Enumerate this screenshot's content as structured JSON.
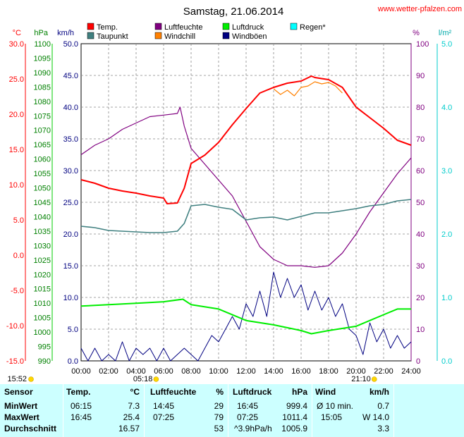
{
  "header": {
    "title": "Samstag, 21.06.2014",
    "website": "www.wetter-pfalzen.com"
  },
  "legend": [
    {
      "label": "Temp.",
      "color": "#ff0000"
    },
    {
      "label": "Luftfeuchte",
      "color": "#800080"
    },
    {
      "label": "Luftdruck",
      "color": "#00ee00"
    },
    {
      "label": "Regen*",
      "color": "#00ffff"
    },
    {
      "label": "Taupunkt",
      "color": "#408080"
    },
    {
      "label": "Windchill",
      "color": "#ff8000"
    },
    {
      "label": "Windböen",
      "color": "#000080"
    }
  ],
  "axis_units": {
    "temp": "°C",
    "pressure": "hPa",
    "wind": "km/h",
    "humidity": "%",
    "rain": "l/m²"
  },
  "sun": {
    "sunrise_left": "15:52",
    "sunrise": "05:18",
    "sunset": "21:10"
  },
  "chart_data": {
    "type": "line",
    "x_label": "",
    "x_ticks": [
      "00:00",
      "02:00",
      "04:00",
      "06:00",
      "08:00",
      "10:00",
      "12:00",
      "14:00",
      "16:00",
      "18:00",
      "20:00",
      "22:00",
      "24:00"
    ],
    "axes": {
      "temp_c": {
        "ticks": [
          "30.0",
          "25.0",
          "20.0",
          "15.0",
          "10.0",
          "5.0",
          "0.0",
          "-5.0",
          "-10.0",
          "-15.0"
        ],
        "range": [
          -15,
          30
        ]
      },
      "pressure_hpa": {
        "ticks": [
          "1100",
          "1095",
          "1090",
          "1085",
          "1080",
          "1075",
          "1070",
          "1065",
          "1060",
          "1055",
          "1050",
          "1045",
          "1040",
          "1035",
          "1030",
          "1025",
          "1020",
          "1015",
          "1010",
          "1005",
          "1000",
          "995",
          "990"
        ],
        "range": [
          990,
          1100
        ]
      },
      "wind_kmh": {
        "ticks": [
          "50.0",
          "45.0",
          "40.0",
          "35.0",
          "30.0",
          "25.0",
          "20.0",
          "15.0",
          "10.0",
          "5.0",
          "0.0"
        ],
        "range": [
          0,
          50
        ]
      },
      "humidity_pct": {
        "ticks": [
          "100",
          "90",
          "80",
          "70",
          "60",
          "50",
          "40",
          "30",
          "20",
          "10",
          "0"
        ],
        "range": [
          0,
          100
        ]
      },
      "rain_lm2": {
        "ticks": [
          "5.0",
          "4.0",
          "3.0",
          "2.0",
          "1.0",
          "0.0"
        ],
        "range": [
          0,
          5
        ]
      }
    },
    "series": [
      {
        "name": "Temp.",
        "axis": "temp_c",
        "color": "#ff0000",
        "points": [
          [
            0,
            10.7
          ],
          [
            1,
            10.2
          ],
          [
            2,
            9.5
          ],
          [
            3,
            9.1
          ],
          [
            4,
            8.8
          ],
          [
            5,
            8.4
          ],
          [
            6,
            8.1
          ],
          [
            6.25,
            7.3
          ],
          [
            7,
            7.4
          ],
          [
            7.5,
            9.5
          ],
          [
            8,
            13.0
          ],
          [
            9,
            14.2
          ],
          [
            10,
            16.0
          ],
          [
            11,
            18.5
          ],
          [
            12,
            20.8
          ],
          [
            13,
            23.0
          ],
          [
            14,
            23.8
          ],
          [
            15,
            24.4
          ],
          [
            16,
            24.7
          ],
          [
            16.75,
            25.4
          ],
          [
            17,
            25.2
          ],
          [
            18,
            24.9
          ],
          [
            19,
            23.8
          ],
          [
            20,
            21.0
          ],
          [
            21,
            19.5
          ],
          [
            22,
            18.0
          ],
          [
            23,
            16.3
          ],
          [
            24,
            15.6
          ]
        ]
      },
      {
        "name": "Taupunkt",
        "axis": "temp_c",
        "color": "#408080",
        "points": [
          [
            0,
            4.1
          ],
          [
            1,
            3.9
          ],
          [
            2,
            3.5
          ],
          [
            3,
            3.4
          ],
          [
            4,
            3.3
          ],
          [
            5,
            3.2
          ],
          [
            6,
            3.2
          ],
          [
            7,
            3.4
          ],
          [
            7.5,
            4.5
          ],
          [
            8,
            7.0
          ],
          [
            9,
            7.2
          ],
          [
            10,
            6.8
          ],
          [
            11,
            6.5
          ],
          [
            12,
            5.0
          ],
          [
            13,
            5.3
          ],
          [
            14,
            5.4
          ],
          [
            15,
            5.0
          ],
          [
            16,
            5.5
          ],
          [
            17,
            6.0
          ],
          [
            18,
            6.0
          ],
          [
            19,
            6.3
          ],
          [
            20,
            6.6
          ],
          [
            21,
            7.0
          ],
          [
            22,
            7.2
          ],
          [
            23,
            7.7
          ],
          [
            24,
            7.9
          ]
        ]
      },
      {
        "name": "Windchill",
        "axis": "temp_c",
        "color": "#ff8000",
        "points": [
          [
            14,
            23.6
          ],
          [
            14.5,
            22.8
          ],
          [
            15,
            23.4
          ],
          [
            15.5,
            22.6
          ],
          [
            16,
            23.8
          ],
          [
            16.5,
            24.0
          ],
          [
            17,
            24.6
          ],
          [
            17.5,
            24.3
          ],
          [
            18,
            24.5
          ],
          [
            18.5,
            24.0
          ],
          [
            19,
            23.0
          ]
        ]
      },
      {
        "name": "Luftfeuchte",
        "axis": "humidity_pct",
        "color": "#800080",
        "points": [
          [
            0,
            65
          ],
          [
            1,
            68
          ],
          [
            2,
            70
          ],
          [
            3,
            73
          ],
          [
            4,
            75
          ],
          [
            5,
            77
          ],
          [
            6,
            77.5
          ],
          [
            7,
            78
          ],
          [
            7.2,
            80
          ],
          [
            7.5,
            74
          ],
          [
            8,
            67
          ],
          [
            9,
            62
          ],
          [
            10,
            57
          ],
          [
            11,
            52
          ],
          [
            12,
            44
          ],
          [
            13,
            36
          ],
          [
            14,
            32
          ],
          [
            15,
            30
          ],
          [
            16,
            30
          ],
          [
            17,
            29.5
          ],
          [
            18,
            30
          ],
          [
            19,
            34
          ],
          [
            20,
            40
          ],
          [
            21,
            47
          ],
          [
            22,
            53
          ],
          [
            23,
            59
          ],
          [
            24,
            64
          ]
        ]
      },
      {
        "name": "Luftdruck",
        "axis": "pressure_hpa",
        "color": "#00ee00",
        "points": [
          [
            0,
            1009.0
          ],
          [
            2,
            1009.5
          ],
          [
            4,
            1010.0
          ],
          [
            6,
            1010.5
          ],
          [
            7.4,
            1011.4
          ],
          [
            8,
            1009.5
          ],
          [
            10,
            1008.0
          ],
          [
            12,
            1004.0
          ],
          [
            14,
            1002.5
          ],
          [
            16,
            1000.5
          ],
          [
            16.75,
            999.4
          ],
          [
            18,
            1000.5
          ],
          [
            20,
            1002.0
          ],
          [
            22,
            1006.0
          ],
          [
            23,
            1008.0
          ],
          [
            24,
            1008.0
          ]
        ]
      },
      {
        "name": "Windböen",
        "axis": "wind_kmh",
        "color": "#000080",
        "points": [
          [
            0,
            2
          ],
          [
            0.5,
            0
          ],
          [
            1,
            2
          ],
          [
            1.5,
            0
          ],
          [
            2,
            1
          ],
          [
            2.5,
            0
          ],
          [
            3,
            3
          ],
          [
            3.5,
            0
          ],
          [
            4,
            2
          ],
          [
            4.5,
            1
          ],
          [
            5,
            2
          ],
          [
            5.5,
            0
          ],
          [
            6,
            2
          ],
          [
            6.5,
            0
          ],
          [
            7,
            1
          ],
          [
            7.5,
            2
          ],
          [
            8,
            1
          ],
          [
            8.5,
            0
          ],
          [
            9,
            2
          ],
          [
            9.5,
            4
          ],
          [
            10,
            3
          ],
          [
            10.5,
            5
          ],
          [
            11,
            7
          ],
          [
            11.5,
            5
          ],
          [
            12,
            9
          ],
          [
            12.5,
            7
          ],
          [
            13,
            11
          ],
          [
            13.5,
            7
          ],
          [
            14,
            14
          ],
          [
            14.5,
            10
          ],
          [
            15,
            13
          ],
          [
            15.5,
            10
          ],
          [
            16,
            12
          ],
          [
            16.5,
            8
          ],
          [
            17,
            11
          ],
          [
            17.5,
            8
          ],
          [
            18,
            10
          ],
          [
            18.5,
            7
          ],
          [
            19,
            9
          ],
          [
            19.5,
            5
          ],
          [
            20,
            4
          ],
          [
            20.5,
            1
          ],
          [
            21,
            6
          ],
          [
            21.5,
            3
          ],
          [
            22,
            5
          ],
          [
            22.5,
            2
          ],
          [
            23,
            4
          ],
          [
            23.5,
            2
          ],
          [
            24,
            3
          ]
        ]
      }
    ]
  },
  "stats": {
    "headers": {
      "sensor": "Sensor",
      "temp": "Temp.",
      "temp_unit": "°C",
      "hum": "Luftfeuchte",
      "hum_unit": "%",
      "press": "Luftdruck",
      "press_unit": "hPa",
      "wind": "Wind",
      "wind_unit": "km/h"
    },
    "rows": [
      {
        "label": "MinWert",
        "temp_time": "06:15",
        "temp_val": "7.3",
        "hum_time": "14:45",
        "hum_val": "29",
        "press_time": "16:45",
        "press_val": "999.4",
        "wind_time": "Ø 10 min.",
        "wind_val": "0.7"
      },
      {
        "label": "MaxWert",
        "temp_time": "16:45",
        "temp_val": "25.4",
        "hum_time": "07:25",
        "hum_val": "79",
        "press_time": "07:25",
        "press_val": "1011.4",
        "wind_time": "15:05",
        "wind_val": "W 14.0"
      },
      {
        "label": "Durchschnitt",
        "temp_time": "",
        "temp_val": "16.57",
        "hum_time": "",
        "hum_val": "53",
        "press_time": "^3.9hPa/h",
        "press_val": "1005.9",
        "wind_time": "",
        "wind_val": "3.3"
      }
    ]
  }
}
